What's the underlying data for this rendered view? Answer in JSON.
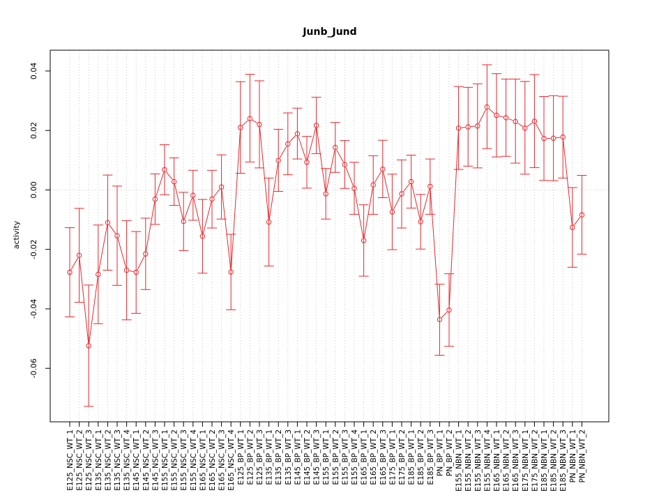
{
  "chart_data": {
    "type": "line",
    "title": "Junb_Jund",
    "xlabel": "",
    "ylabel": "activity",
    "ylim": [
      -0.078,
      0.047
    ],
    "yticks": [
      -0.06,
      -0.04,
      -0.02,
      0.0,
      0.02,
      0.04
    ],
    "ytick_labels": [
      "-0.06",
      "-0.04",
      "-0.02",
      "0.00",
      "0.02",
      "0.04"
    ],
    "grid": true,
    "colors": {
      "series": "#e8262b",
      "grid": "#c8c8c8",
      "frame": "#000000"
    },
    "categories": [
      "E125_NSC_WT_1",
      "E125_NSC_WT_2",
      "E125_NSC_WT_3",
      "E135_NSC_WT_1",
      "E135_NSC_WT_2",
      "E135_NSC_WT_3",
      "E135_NSC_WT_4",
      "E145_NSC_WT_1",
      "E145_NSC_WT_2",
      "E145_NSC_WT_3",
      "E155_NSC_WT_1",
      "E155_NSC_WT_2",
      "E155_NSC_WT_3",
      "E155_NSC_WT_4",
      "E165_NSC_WT_1",
      "E165_NSC_WT_2",
      "E165_NSC_WT_3",
      "E165_NSC_WT_4",
      "E125_BP_WT_1",
      "E125_BP_WT_2",
      "E125_BP_WT_3",
      "E135_BP_WT_1",
      "E135_BP_WT_2",
      "E135_BP_WT_3",
      "E145_BP_WT_1",
      "E145_BP_WT_2",
      "E145_BP_WT_3",
      "E155_BP_WT_1",
      "E155_BP_WT_2",
      "E155_BP_WT_3",
      "E155_BP_WT_4",
      "E165_BP_WT_1",
      "E165_BP_WT_2",
      "E165_BP_WT_3",
      "E175_BP_WT_1",
      "E175_BP_WT_2",
      "E185_BP_WT_1",
      "E185_BP_WT_2",
      "E185_BP_WT_3",
      "PN_BP_WT_1",
      "PN_BP_WT_2",
      "E155_NBN_WT_1",
      "E155_NBN_WT_2",
      "E155_NBN_WT_3",
      "E155_NBN_WT_4",
      "E165_NBN_WT_1",
      "E165_NBN_WT_2",
      "E165_NBN_WT_3",
      "E175_NBN_WT_1",
      "E175_NBN_WT_2",
      "E185_NBN_WT_1",
      "E185_NBN_WT_2",
      "E185_NBN_WT_3",
      "PN_NBN_WT_1",
      "PN_NBN_WT_2"
    ],
    "series": [
      {
        "values": [
          -0.0277,
          -0.022,
          -0.0524,
          -0.0284,
          -0.011,
          -0.0154,
          -0.027,
          -0.0277,
          -0.0215,
          -0.0031,
          0.0068,
          0.0028,
          -0.0106,
          -0.0018,
          -0.0156,
          -0.0031,
          0.001,
          -0.0276,
          0.021,
          0.024,
          0.022,
          -0.0108,
          0.0099,
          0.0155,
          0.0189,
          0.0093,
          0.0217,
          -0.0013,
          0.0143,
          0.0085,
          0.0005,
          -0.017,
          0.0017,
          0.007,
          -0.0074,
          -0.0013,
          0.0028,
          -0.0107,
          0.0012,
          -0.0436,
          -0.0404,
          0.0208,
          0.0212,
          0.0215,
          0.0279,
          0.0251,
          0.0243,
          0.023,
          0.0208,
          0.0231,
          0.0173,
          0.0174,
          0.0178,
          -0.0126,
          -0.0084
        ],
        "lower": [
          -0.0427,
          -0.0378,
          -0.0728,
          -0.045,
          -0.027,
          -0.0321,
          -0.0437,
          -0.0415,
          -0.0335,
          -0.0116,
          -0.0016,
          -0.0052,
          -0.0204,
          -0.0102,
          -0.028,
          -0.0128,
          -0.0098,
          -0.0403,
          0.0056,
          0.0094,
          0.0074,
          -0.0256,
          -0.0005,
          0.0051,
          0.0104,
          0.0006,
          0.0122,
          -0.0098,
          0.0059,
          0.0005,
          -0.0082,
          -0.029,
          -0.0082,
          -0.0026,
          -0.0201,
          -0.0128,
          -0.0061,
          -0.0199,
          -0.0082,
          -0.0556,
          -0.0526,
          0.0069,
          0.008,
          0.0074,
          0.0139,
          0.0111,
          0.0113,
          0.009,
          0.0053,
          0.0075,
          0.0032,
          0.0031,
          0.004,
          -0.026,
          -0.0216
        ],
        "upper": [
          -0.0127,
          -0.0062,
          -0.032,
          -0.0118,
          0.005,
          0.0013,
          -0.0103,
          -0.014,
          -0.0095,
          0.0054,
          0.0152,
          0.0108,
          -0.0008,
          0.0066,
          -0.0032,
          0.0066,
          0.0118,
          -0.0149,
          0.0364,
          0.0389,
          0.0367,
          0.004,
          0.0204,
          0.0259,
          0.0275,
          0.018,
          0.0312,
          0.0072,
          0.0227,
          0.0166,
          0.0093,
          -0.005,
          0.0115,
          0.0167,
          0.0053,
          0.0101,
          0.0117,
          -0.0015,
          0.0104,
          -0.0317,
          -0.0282,
          0.0348,
          0.0345,
          0.0357,
          0.0421,
          0.0391,
          0.0373,
          0.0373,
          0.0365,
          0.0388,
          0.0314,
          0.0317,
          0.0315,
          0.0008,
          0.0049
        ]
      }
    ]
  }
}
